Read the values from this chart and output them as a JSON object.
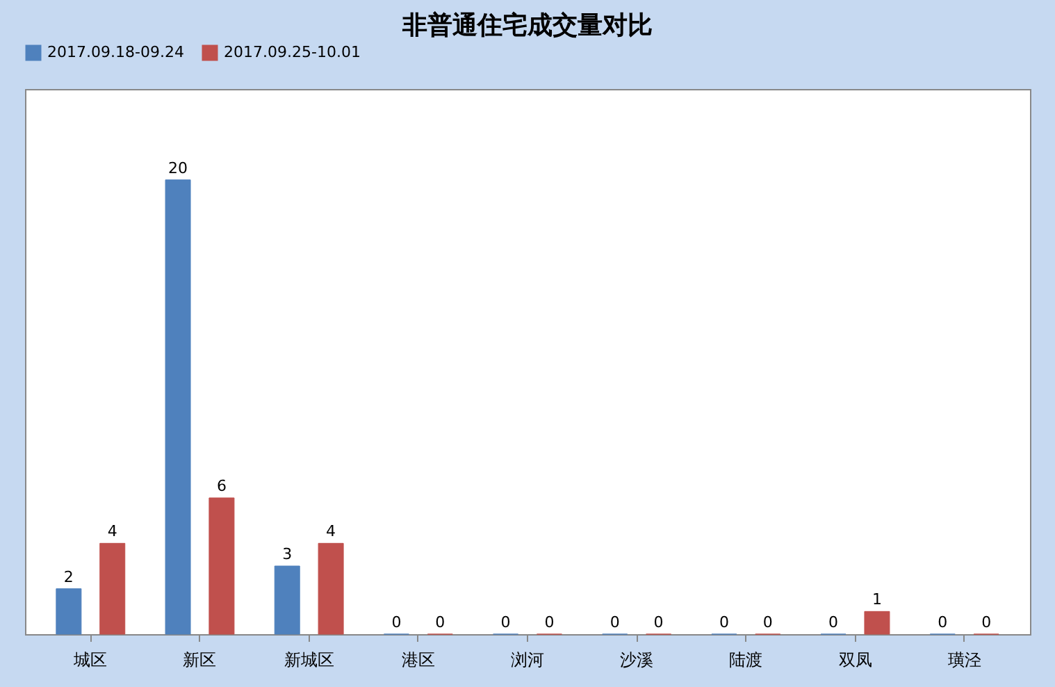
{
  "chart_data": {
    "type": "bar",
    "title": "非普通住宅成交量对比",
    "categories": [
      "城区",
      "新区",
      "新城区",
      "港区",
      "浏河",
      "沙溪",
      "陆渡",
      "双凤",
      "璜泾"
    ],
    "series": [
      {
        "name": "2017.09.18-09.24",
        "color": "#4f81bd",
        "values": [
          2,
          20,
          3,
          0,
          0,
          0,
          0,
          0,
          0
        ]
      },
      {
        "name": "2017.09.25-10.01",
        "color": "#c0504d",
        "values": [
          4,
          6,
          4,
          0,
          0,
          0,
          0,
          1,
          0
        ]
      }
    ],
    "data_labels": true,
    "legend": "top",
    "grid": false
  }
}
